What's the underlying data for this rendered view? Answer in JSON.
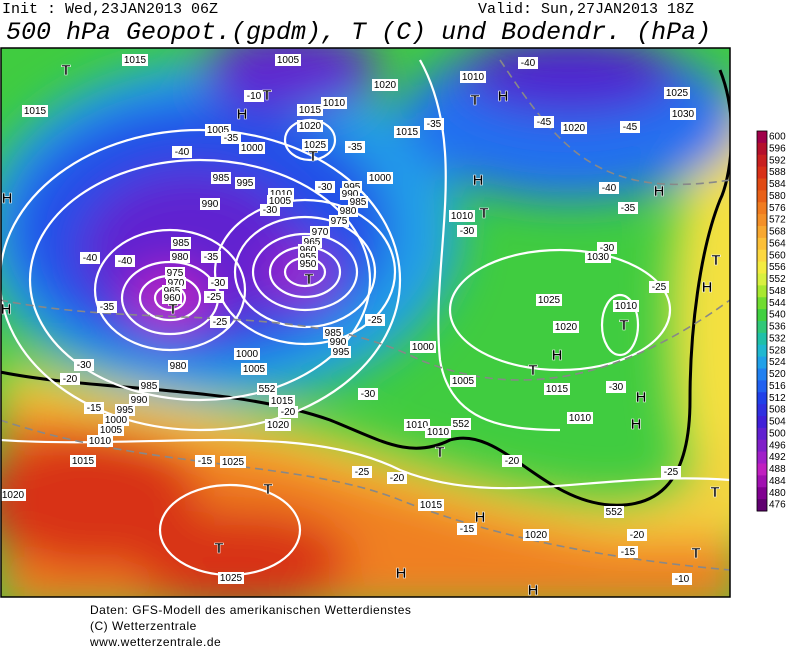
{
  "header": {
    "init": "Init : Wed,23JAN2013 06Z",
    "valid": "Valid: Sun,27JAN2013 18Z",
    "title": "500 hPa Geopot.(gpdm), T (C) und Bodendr. (hPa)"
  },
  "map": {
    "labels": [
      "1015",
      "1005",
      "1020",
      "1010",
      "-40",
      "1025",
      "1015",
      "-10",
      "1010",
      "1015",
      "1020",
      "1005",
      "-35",
      "1025",
      "-35",
      "1015",
      "-35",
      "-45",
      "1020",
      "-45",
      "1030",
      "1000",
      "-40",
      "985",
      "995",
      "-30",
      "1000",
      "995",
      "990",
      "985",
      "1010",
      "1005",
      "990",
      "-30",
      "980",
      "1010",
      "-40",
      "-35",
      "975",
      "970",
      "-30",
      "985",
      "965",
      "960",
      "955",
      "950",
      "980",
      "-35",
      "-40",
      "-40",
      "-30",
      "1030",
      "975",
      "970",
      "-30",
      "965",
      "960",
      "-25",
      "1025",
      "1010",
      "-25",
      "-35",
      "-25",
      "-25",
      "1020",
      "985",
      "990",
      "995",
      "1000",
      "1000",
      "980",
      "1005",
      "-30",
      "-20",
      "1005",
      "1015",
      "-30",
      "985",
      "-30",
      "552",
      "1015",
      "990",
      "-15",
      "995",
      "-20",
      "1000",
      "1020",
      "1010",
      "1005",
      "1010",
      "1010",
      "552",
      "1010",
      "1015",
      "-15",
      "1025",
      "-20",
      "-25",
      "-25",
      "1020",
      "-20",
      "1015",
      "552",
      "-15",
      "1020",
      "-20",
      "-15",
      "1025",
      "-10",
      "T",
      "T",
      "H",
      "H",
      "T",
      "T",
      "H",
      "T",
      "H",
      "T",
      "H",
      "T",
      "H",
      "T",
      "T",
      "H",
      "T",
      "H",
      "H",
      "T",
      "T",
      "H",
      "T",
      "H",
      "T",
      "H",
      "H",
      "T"
    ]
  },
  "colorbar": {
    "levels": [
      600,
      596,
      592,
      588,
      584,
      580,
      576,
      572,
      568,
      564,
      560,
      556,
      552,
      548,
      544,
      540,
      536,
      532,
      528,
      524,
      520,
      516,
      512,
      508,
      504,
      500,
      496,
      492,
      488,
      484,
      480,
      476
    ],
    "colors": [
      "#a0004a",
      "#b4102c",
      "#c82020",
      "#d83018",
      "#e04a14",
      "#e86018",
      "#f07c20",
      "#f49028",
      "#f8a830",
      "#fcc038",
      "#fcd840",
      "#f4ec40",
      "#d8f040",
      "#a8e830",
      "#70dc30",
      "#40d040",
      "#30c878",
      "#20c0a8",
      "#20b8d0",
      "#20a0e8",
      "#2080f0",
      "#2060f0",
      "#2040e8",
      "#3030e0",
      "#4020d8",
      "#6020d0",
      "#8020c8",
      "#a020c8",
      "#c020c0",
      "#a010b0",
      "#800090",
      "#600070"
    ]
  },
  "footer": {
    "lines": [
      "Daten: GFS-Modell des amerikanischen Wetterdienstes",
      "(C) Wetterzentrale",
      "www.wetterzentrale.de"
    ]
  }
}
